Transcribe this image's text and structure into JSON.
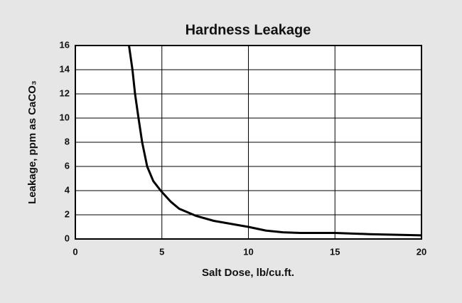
{
  "chart_data": {
    "type": "line",
    "title": "Hardness Leakage",
    "x_label": "Salt Dose, lb/cu.ft.",
    "y_label": "Leakage, ppm as CaCO₃",
    "x": [
      3.1,
      3.3,
      3.45,
      3.65,
      3.86,
      4.15,
      4.5,
      4.93,
      5.5,
      6,
      7,
      8,
      9,
      10,
      11,
      12,
      13,
      15,
      17,
      20
    ],
    "series": [
      {
        "name": "Leakage",
        "color": "#000000",
        "values": [
          16,
          14,
          12,
          10,
          8,
          6,
          4.8,
          4,
          3.1,
          2.5,
          1.9,
          1.5,
          1.25,
          1.0,
          0.7,
          0.55,
          0.5,
          0.5,
          0.4,
          0.3
        ]
      }
    ],
    "xlim": [
      0,
      20
    ],
    "xticks": [
      0,
      5,
      10,
      15,
      20
    ],
    "ylim": [
      0,
      16
    ],
    "yticks": [
      0,
      2,
      4,
      6,
      8,
      10,
      12,
      14,
      16
    ],
    "grid": true
  }
}
